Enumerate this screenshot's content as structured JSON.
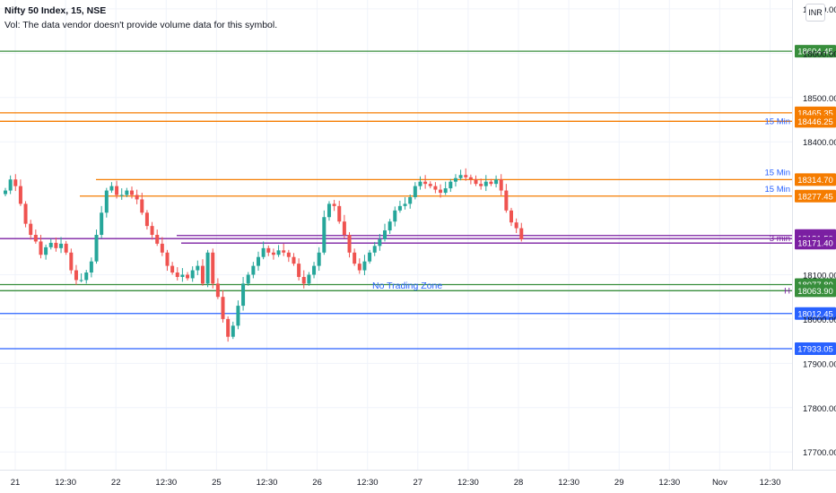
{
  "header": {
    "title": "Nifty 50 Index, 15, NSE",
    "vol_note": "Vol: The data vendor doesn't provide volume data for this symbol.",
    "currency": "INR"
  },
  "colors": {
    "up": "#26a69a",
    "down": "#ef5350",
    "green_level": "#388e3c",
    "orange_level": "#f57c00",
    "purple_level": "#7b1fa2",
    "blue_level": "#2962ff",
    "annotation": "#2962ff"
  },
  "chart_data": {
    "type": "candlestick",
    "ylim": [
      17660,
      18720
    ],
    "y_ticks": [
      "17700.00",
      "17800.00",
      "17900.00",
      "18000.00",
      "18100.00",
      "18400.00",
      "18500.00",
      "18600.00",
      "18700.00"
    ],
    "x_ticks": [
      "21",
      "12:30",
      "22",
      "12:30",
      "25",
      "12:30",
      "26",
      "12:30",
      "27",
      "12:30",
      "28",
      "12:30",
      "29",
      "12:30",
      "Nov",
      "12:30"
    ],
    "levels": [
      {
        "price": 18604.45,
        "label": "18604.45",
        "color": "green"
      },
      {
        "price": 18465.35,
        "label": "18465.35",
        "color": "orange"
      },
      {
        "price": 18446.25,
        "label": "18446.25",
        "color": "orange",
        "tag": "15 Min"
      },
      {
        "price": 18314.7,
        "label": "18314.70",
        "color": "orange",
        "tag": "15 Min"
      },
      {
        "price": 18277.45,
        "label": "18277.45",
        "color": "orange",
        "tag": "15 Min"
      },
      {
        "price": 18188.45,
        "label": "18188.45",
        "color": "purple"
      },
      {
        "price": 18181.5,
        "label": "18181.50",
        "color": "purple",
        "tag": "3 min"
      },
      {
        "price": 18171.4,
        "label": "18171.40",
        "color": "purple"
      },
      {
        "price": 18077.8,
        "label": "18077.80",
        "color": "green"
      },
      {
        "price": 18063.9,
        "label": "18063.90",
        "color": "green",
        "tag": "H"
      },
      {
        "price": 18012.45,
        "label": "18012.45",
        "color": "blue"
      },
      {
        "price": 17933.05,
        "label": "17933.05",
        "color": "blue"
      }
    ],
    "annotation": "No Trading Zone",
    "close_series": [
      18290,
      18315,
      18300,
      18260,
      18215,
      18190,
      18175,
      18145,
      18162,
      18172,
      18160,
      18170,
      18150,
      18110,
      18088,
      18088,
      18105,
      18130,
      18190,
      18240,
      18290,
      18300,
      18280,
      18280,
      18290,
      18280,
      18270,
      18240,
      18210,
      18190,
      18170,
      18150,
      18120,
      18105,
      18095,
      18100,
      18092,
      18110,
      18120,
      18080,
      18150,
      18080,
      18050,
      18000,
      17960,
      17985,
      18030,
      18080,
      18100,
      18120,
      18140,
      18160,
      18150,
      18145,
      18155,
      18150,
      18140,
      18125,
      18095,
      18080,
      18100,
      18120,
      18150,
      18230,
      18260,
      18255,
      18220,
      18190,
      18150,
      18125,
      18110,
      18130,
      18150,
      18165,
      18180,
      18200,
      18220,
      18245,
      18255,
      18260,
      18275,
      18300,
      18310,
      18305,
      18300,
      18292,
      18285,
      18295,
      18310,
      18318,
      18325,
      18320,
      18315,
      18305,
      18300,
      18310,
      18305,
      18315,
      18290,
      18245,
      18218,
      18205,
      18180
    ]
  }
}
